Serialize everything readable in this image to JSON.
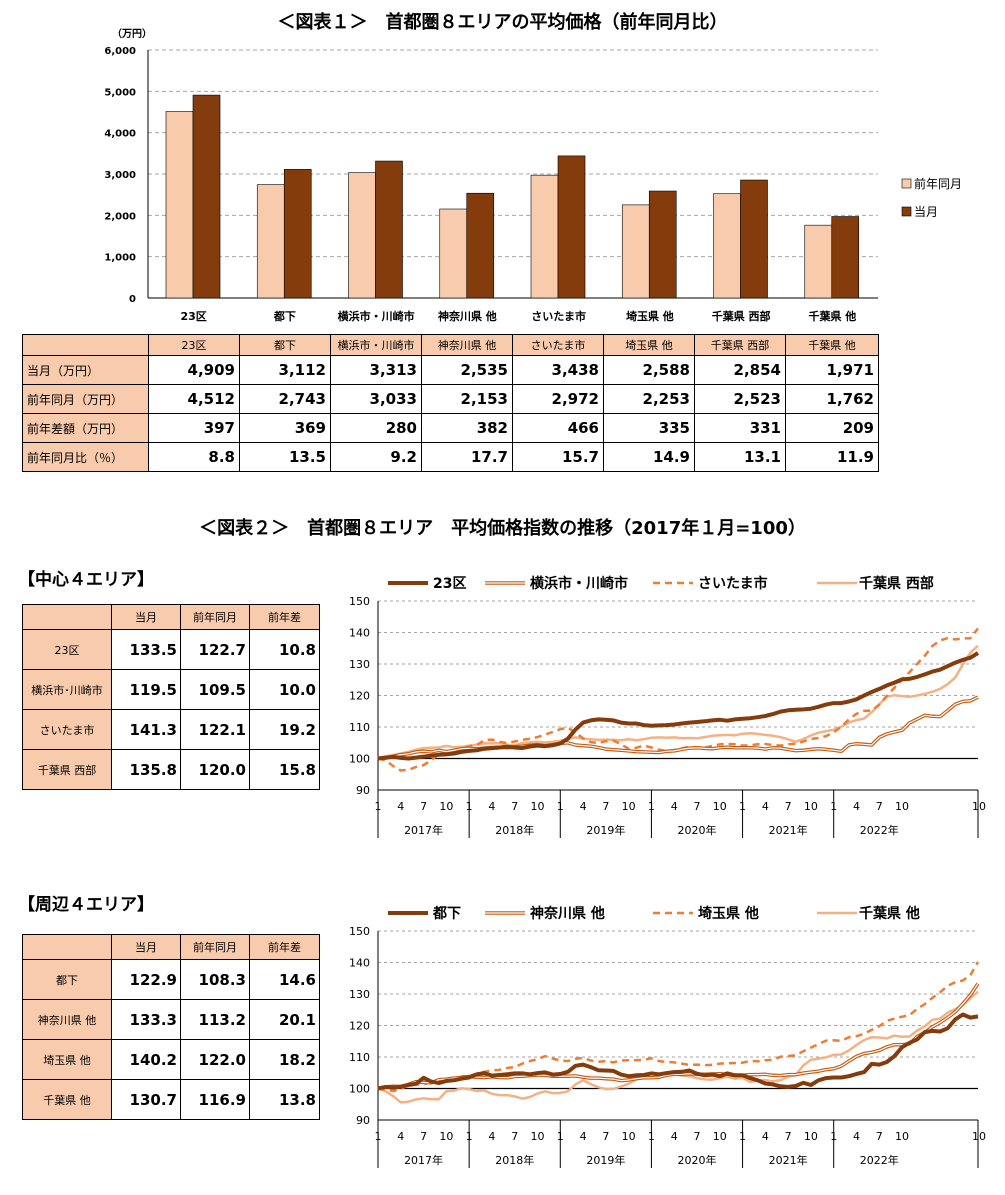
{
  "title1": "＜図表１＞　首都圏８エリアの平均価格（前年同月比）",
  "title2": "＜図表２＞　首都圏８エリア　平均価格指数の推移（2017年１月=100）",
  "section_center": "【中心４エリア】",
  "section_periph": "【周辺４エリア】",
  "colors": {
    "light": "#f8cbad",
    "dark": "#843c0c",
    "orange": "#ed7d31",
    "mid": "#c55a11",
    "pale": "#f4b183"
  },
  "chart_data": [
    {
      "type": "bar",
      "unit_label": "（万円）",
      "categories": [
        "23区",
        "都下",
        "横浜市・川崎市",
        "神奈川県 他",
        "さいたま市",
        "埼玉県 他",
        "千葉県 西部",
        "千葉県 他"
      ],
      "series": [
        {
          "name": "前年同月",
          "values": [
            4512,
            2743,
            3033,
            2153,
            2972,
            2253,
            2523,
            1762
          ]
        },
        {
          "name": "当月",
          "values": [
            4909,
            3112,
            3313,
            2535,
            3438,
            2588,
            2854,
            1971
          ]
        }
      ],
      "ylim": [
        0,
        6000
      ],
      "yticks": [
        "0",
        "1,000",
        "2,000",
        "3,000",
        "4,000",
        "5,000",
        "6,000"
      ],
      "legend": "right",
      "table": {
        "rows": [
          {
            "label": "当月（万円）",
            "values": [
              "4,909",
              "3,112",
              "3,313",
              "2,535",
              "3,438",
              "2,588",
              "2,854",
              "1,971"
            ]
          },
          {
            "label": "前年同月（万円）",
            "values": [
              "4,512",
              "2,743",
              "3,033",
              "2,153",
              "2,972",
              "2,253",
              "2,523",
              "1,762"
            ]
          },
          {
            "label": "前年差額（万円）",
            "values": [
              "397",
              "369",
              "280",
              "382",
              "466",
              "335",
              "331",
              "209"
            ]
          },
          {
            "label": "前年同月比（％）",
            "values": [
              "8.8",
              "13.5",
              "9.2",
              "17.7",
              "15.7",
              "14.9",
              "13.1",
              "11.9"
            ]
          }
        ]
      }
    },
    {
      "type": "line",
      "ylim": [
        90,
        150
      ],
      "yticks": [
        "90",
        "100",
        "110",
        "120",
        "130",
        "140",
        "150"
      ],
      "month_ticks": [
        "1",
        "4",
        "7",
        "10"
      ],
      "last_tick": "10",
      "years": [
        "2017年",
        "2018年",
        "2019年",
        "2020年",
        "2021年",
        "2022年"
      ],
      "series": [
        {
          "name": "23区",
          "style": "thick-dark",
          "values": [
            100,
            100.3,
            100.5,
            100.2,
            100,
            100.3,
            100.6,
            100.9,
            101.2,
            101.3,
            101.6,
            102.1,
            102.4,
            102.6,
            103.1,
            103.3,
            103.5,
            103.7,
            103.5,
            103.3,
            103.8,
            104.1,
            103.9,
            104.2,
            104.8,
            106.3,
            109.2,
            111.4,
            112.1,
            112.4,
            112.3,
            112.1,
            111.4,
            111.1,
            111.1,
            110.6,
            110.4,
            110.5,
            110.6,
            110.8,
            111.1,
            111.4,
            111.6,
            111.8,
            112.1,
            112.3,
            112,
            112.4,
            112.6,
            112.8,
            113.1,
            113.5,
            114.1,
            114.9,
            115.3,
            115.5,
            115.6,
            115.8,
            116.4,
            117.1,
            117.6,
            117.6,
            118.1,
            118.8,
            120,
            121.1,
            122.1,
            123.2,
            124.1,
            125.1,
            125.3,
            125.9,
            126.7,
            127.6,
            128.2,
            129.3,
            130.4,
            131.3,
            132,
            133.5
          ]
        },
        {
          "name": "横浜市・川崎市",
          "style": "double",
          "values": [
            100,
            100.1,
            100.7,
            101.2,
            101.5,
            102.1,
            102.3,
            102.1,
            102.6,
            102.2,
            102.6,
            103.1,
            103.2,
            103.1,
            103.3,
            103.5,
            103.6,
            103.4,
            103.7,
            103.9,
            104.2,
            104.4,
            104.1,
            104.4,
            104.8,
            105,
            104.3,
            104.1,
            103.9,
            103.5,
            103,
            102.8,
            102.6,
            102.4,
            102.2,
            102.1,
            102,
            101.9,
            102.3,
            102.4,
            102.9,
            103.3,
            103.4,
            103.2,
            103.1,
            103.4,
            103.6,
            103.4,
            103.4,
            103.4,
            103.3,
            103,
            103.4,
            103.3,
            102.9,
            102.5,
            102.6,
            102.9,
            103.1,
            102.9,
            102.6,
            102.3,
            104.3,
            104.7,
            104.5,
            104.3,
            106.7,
            107.8,
            108.4,
            109,
            111.3,
            112.5,
            113.7,
            113.4,
            113.3,
            115.2,
            117.2,
            118.1,
            118.3,
            119.5
          ]
        },
        {
          "name": "さいたま市",
          "style": "dashed",
          "values": [
            100,
            99.4,
            97.6,
            96.2,
            96.4,
            97.3,
            97.9,
            99.5,
            101.3,
            101.5,
            102,
            103,
            103.8,
            104.3,
            105.8,
            106,
            105.3,
            104.9,
            105.4,
            105.9,
            106.3,
            106.8,
            107.6,
            108.4,
            109.3,
            109.8,
            108.2,
            106.4,
            105.2,
            104.9,
            105.5,
            105.7,
            104.5,
            103.1,
            103.4,
            104.1,
            103.5,
            102.8,
            102.4,
            102.7,
            103.2,
            103.7,
            103.6,
            103.4,
            104,
            104.5,
            104.6,
            104.5,
            104.1,
            104.2,
            104.5,
            104.6,
            104.3,
            104.1,
            104.5,
            104.7,
            105.4,
            106.2,
            106.5,
            107.1,
            108.3,
            110.1,
            112.4,
            114.2,
            115.1,
            115.2,
            117.1,
            119.9,
            122.5,
            125.1,
            127.4,
            130.1,
            132.6,
            135.7,
            137.5,
            138.2,
            137.8,
            138.1,
            138.2,
            141.3
          ]
        },
        {
          "name": "千葉県 西部",
          "style": "pale",
          "values": [
            100,
            100.7,
            101.1,
            101.6,
            102.1,
            102.8,
            103.3,
            103.4,
            103.5,
            104,
            103.6,
            103.7,
            104.1,
            104.4,
            104.8,
            104.8,
            104.9,
            104.3,
            104.2,
            104.9,
            105.1,
            105.3,
            105.1,
            105.3,
            105.6,
            106.2,
            106.7,
            106.3,
            106.1,
            105.9,
            106,
            105.9,
            105.8,
            106.1,
            105.8,
            106.1,
            106.6,
            106.7,
            106.6,
            106.7,
            106.4,
            106.5,
            106.4,
            106.8,
            107.2,
            107.4,
            107.5,
            107.4,
            107.8,
            108,
            107.8,
            107.5,
            107.2,
            106.8,
            106.1,
            105.3,
            106.2,
            107.3,
            108.2,
            108.7,
            109.1,
            110.1,
            111.4,
            112.2,
            112.7,
            114.7,
            117.2,
            119.6,
            120.1,
            119.8,
            119.6,
            120,
            120.5,
            121.2,
            122.1,
            123.6,
            125.7,
            129.8,
            133.6,
            135.8
          ]
        }
      ]
    },
    {
      "type": "line",
      "ylim": [
        90,
        150
      ],
      "yticks": [
        "90",
        "100",
        "110",
        "120",
        "130",
        "140",
        "150"
      ],
      "month_ticks": [
        "1",
        "4",
        "7",
        "10"
      ],
      "last_tick": "10",
      "years": [
        "2017年",
        "2018年",
        "2019年",
        "2020年",
        "2021年",
        "2022年"
      ],
      "series": [
        {
          "name": "都下",
          "style": "thick-dark",
          "values": [
            100,
            100.5,
            100.3,
            100.6,
            101.1,
            101.5,
            103.4,
            102.2,
            101.7,
            102.4,
            102.6,
            103.1,
            103.5,
            104.5,
            104.9,
            104.1,
            104.3,
            104.5,
            104.8,
            104.8,
            104.5,
            104.9,
            105.1,
            104.4,
            104.6,
            105.3,
            107.2,
            107.6,
            106.8,
            105.8,
            105.7,
            105.6,
            104.4,
            103.9,
            104.2,
            104.3,
            104.8,
            104.5,
            104.9,
            105.2,
            105.3,
            105.7,
            104.7,
            104.2,
            104.4,
            103.9,
            104.8,
            104.2,
            104.2,
            103.3,
            102.6,
            101.6,
            101.3,
            100.7,
            100.5,
            100.8,
            101.8,
            101.1,
            102.6,
            103.3,
            103.5,
            103.5,
            103.9,
            104.6,
            105.2,
            107.8,
            107.6,
            108.4,
            110.3,
            113.1,
            114.5,
            115.6,
            117.9,
            118.3,
            118.1,
            119.1,
            121.9,
            123.5,
            122.5,
            122.9
          ]
        },
        {
          "name": "神奈川県 他",
          "style": "double",
          "values": [
            100,
            100.5,
            100.7,
            100.6,
            101.3,
            102.2,
            101.9,
            101.8,
            102.8,
            103,
            103.3,
            103.5,
            103.8,
            103.6,
            103.5,
            103.7,
            103.5,
            103.4,
            103.8,
            103.9,
            104.1,
            104.3,
            104.2,
            103.9,
            103.9,
            103.9,
            104,
            103.6,
            103.3,
            103.3,
            103.1,
            103,
            102.5,
            102.7,
            103.1,
            103.4,
            103.4,
            103.6,
            104.2,
            104.5,
            104.5,
            104.7,
            104.5,
            104.5,
            104.6,
            104.7,
            104.5,
            104.1,
            104.2,
            104.4,
            104.4,
            104.5,
            104.2,
            104.1,
            104.4,
            104.4,
            104.9,
            105.2,
            105.5,
            106,
            106.3,
            107.1,
            108.7,
            110.2,
            111.1,
            111.5,
            112.1,
            113.2,
            113.9,
            113.9,
            114.2,
            116.5,
            117.8,
            119.6,
            120.9,
            122.5,
            124.3,
            126.9,
            129.7,
            133.3
          ]
        },
        {
          "name": "埼玉県 他",
          "style": "dashed",
          "values": [
            100,
            99.6,
            99.2,
            99.8,
            101.1,
            101.3,
            101.2,
            102.2,
            102.3,
            102.1,
            103,
            103.8,
            104.1,
            104.6,
            105.3,
            105.7,
            105.9,
            106.5,
            106.8,
            107.9,
            108.7,
            109.3,
            110.3,
            109.5,
            108.9,
            108.7,
            109.4,
            109.7,
            108.9,
            108.5,
            108.7,
            108.3,
            108.9,
            109,
            109,
            109.1,
            109.6,
            108.7,
            108.4,
            108.3,
            107.9,
            107.5,
            107.6,
            107.4,
            107.5,
            107.9,
            108,
            108.1,
            108.2,
            108.8,
            108.6,
            109,
            109.1,
            110.1,
            110.3,
            110.6,
            111.8,
            113,
            114.1,
            115.2,
            115.3,
            115.1,
            116.3,
            116.6,
            117.4,
            118.6,
            119.8,
            121.5,
            122.2,
            122.8,
            123.3,
            125.3,
            126.8,
            128.8,
            130.5,
            132.6,
            133.7,
            134.3,
            136,
            140.2
          ]
        },
        {
          "name": "千葉県 他",
          "style": "pale",
          "values": [
            100,
            99.1,
            97.6,
            95.6,
            95.8,
            96.5,
            96.9,
            96.6,
            96.6,
            99.1,
            99.3,
            100.1,
            99.8,
            99.2,
            99.4,
            98.3,
            97.9,
            97.9,
            97.5,
            96.8,
            97.3,
            98.4,
            99.1,
            98.5,
            98.6,
            99.1,
            101.3,
            102.6,
            101.4,
            100.4,
            99.8,
            99.9,
            100.6,
            101.5,
            102.9,
            104.4,
            104.8,
            104.7,
            104.9,
            104.5,
            104.1,
            103.9,
            103.3,
            102.9,
            102.8,
            103.3,
            103.7,
            103.1,
            103.4,
            102.1,
            102.5,
            102.7,
            102.3,
            102.6,
            103.7,
            104.3,
            107.3,
            109.1,
            109.5,
            109.9,
            110.7,
            110.8,
            112.1,
            113.8,
            115.4,
            116.3,
            116.2,
            115.9,
            116.8,
            116.4,
            116.5,
            118.4,
            119.7,
            121.8,
            122.2,
            124.1,
            125.2,
            126.4,
            128.7,
            130.7
          ]
        }
      ]
    }
  ],
  "table_center": {
    "headers": [
      "当月",
      "前年同月",
      "前年差"
    ],
    "rows": [
      {
        "label": "23区",
        "values": [
          "133.5",
          "122.7",
          "10.8"
        ]
      },
      {
        "label": "横浜市･川崎市",
        "values": [
          "119.5",
          "109.5",
          "10.0"
        ]
      },
      {
        "label": "さいたま市",
        "values": [
          "141.3",
          "122.1",
          "19.2"
        ]
      },
      {
        "label": "千葉県 西部",
        "values": [
          "135.8",
          "120.0",
          "15.8"
        ]
      }
    ]
  },
  "table_periph": {
    "headers": [
      "当月",
      "前年同月",
      "前年差"
    ],
    "rows": [
      {
        "label": "都下",
        "values": [
          "122.9",
          "108.3",
          "14.6"
        ]
      },
      {
        "label": "神奈川県 他",
        "values": [
          "133.3",
          "113.2",
          "20.1"
        ]
      },
      {
        "label": "埼玉県 他",
        "values": [
          "140.2",
          "122.0",
          "18.2"
        ]
      },
      {
        "label": "千葉県 他",
        "values": [
          "130.7",
          "116.9",
          "13.8"
        ]
      }
    ]
  }
}
